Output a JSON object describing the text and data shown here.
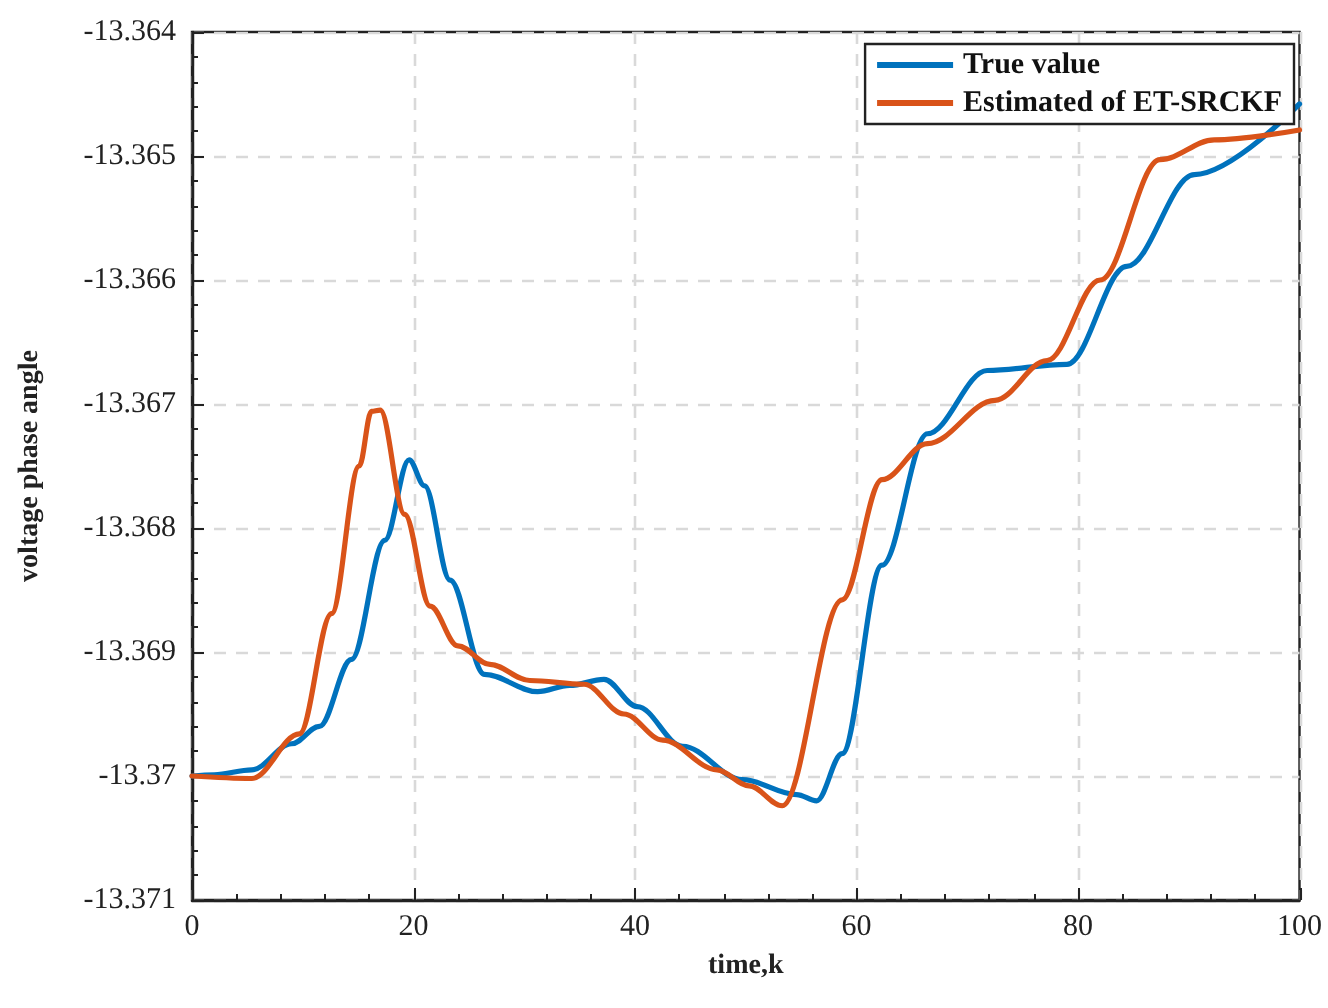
{
  "chart_data": {
    "type": "line",
    "xlabel": "time,k",
    "ylabel": "voltage phase angle",
    "xlim": [
      0,
      100
    ],
    "xticks": [
      0,
      20,
      40,
      60,
      80,
      100
    ],
    "ylim": [
      -13.371,
      -13.364
    ],
    "yticks": [
      -13.371,
      -13.37,
      -13.369,
      -13.368,
      -13.367,
      -13.366,
      -13.365,
      -13.364
    ],
    "grid": true,
    "legend": "top right",
    "marker": "none",
    "line_style": "solid",
    "series": [
      {
        "name": "True value",
        "color": "#0072bd",
        "x": [
          0,
          2,
          5.4,
          9,
          11.5,
          14.4,
          17.4,
          19.6,
          21,
          23.3,
          26.4,
          31.2,
          34.1,
          37.2,
          40.2,
          44.3,
          49.7,
          54.6,
          56.4,
          58.7,
          62.3,
          66.4,
          71.8,
          79,
          84.4,
          90.5,
          100
        ],
        "values": [
          -13.37,
          -13.36999,
          -13.36995,
          -13.36974,
          -13.3696,
          -13.36906,
          -13.3681,
          -13.36745,
          -13.36766,
          -13.36842,
          -13.36918,
          -13.36932,
          -13.36927,
          -13.36922,
          -13.36944,
          -13.36976,
          -13.37003,
          -13.37015,
          -13.3702,
          -13.36982,
          -13.3683,
          -13.36724,
          -13.36673,
          -13.36668,
          -13.36589,
          -13.36515,
          -13.36458
        ]
      },
      {
        "name": "Estimated of ET-SRCKF",
        "color": "#d95319",
        "x": [
          0,
          5.4,
          9.7,
          12.6,
          15.1,
          16.2,
          17,
          19.2,
          21.5,
          24,
          26.9,
          30.5,
          35.4,
          39,
          42.5,
          47.4,
          50.3,
          53.3,
          58.7,
          62.3,
          66.4,
          72.5,
          77.2,
          82,
          87.4,
          92.3,
          100
        ],
        "values": [
          -13.37,
          -13.37002,
          -13.36966,
          -13.36869,
          -13.3675,
          -13.36706,
          -13.36705,
          -13.36789,
          -13.36863,
          -13.36895,
          -13.3691,
          -13.36923,
          -13.36926,
          -13.3695,
          -13.36971,
          -13.36995,
          -13.37008,
          -13.37024,
          -13.36858,
          -13.36761,
          -13.36732,
          -13.36697,
          -13.36665,
          -13.366,
          -13.36503,
          -13.36487,
          -13.36479
        ]
      }
    ]
  }
}
